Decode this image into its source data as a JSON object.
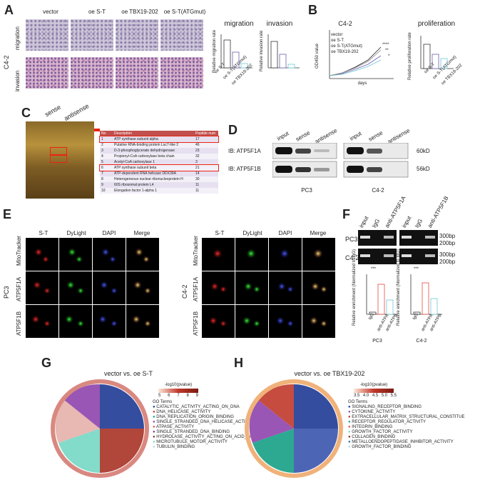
{
  "panels": {
    "A": "A",
    "B": "B",
    "C": "C",
    "D": "D",
    "E": "E",
    "F": "F",
    "G": "G",
    "H": "H"
  },
  "panelA": {
    "cell_line": "C4-2",
    "columns": [
      "vector",
      "oe S-T",
      "oe TBX19-202",
      "oe S-T(ATGmut)"
    ],
    "rows": [
      "migration",
      "invasion"
    ],
    "chart_titles": [
      "migration",
      "invasion"
    ],
    "ylabels": [
      "Relative migration rate",
      "Relative invasion rate"
    ],
    "xcats": [
      "oe S-T",
      "oe S-T(ATGmut)",
      "oe TBX19-202"
    ]
  },
  "panelB": {
    "title": "C4-2",
    "title2": "proliferation",
    "ylabel": "OD450 value",
    "xlabel": "days",
    "legend": [
      "vector",
      "oe S-T",
      "oe S-T(ATGmut)",
      "oe TBX19-202"
    ],
    "sig": [
      "****",
      "**",
      "*"
    ],
    "ylabel2": "Relative proliferation rate",
    "xcats2": [
      "oe S-T",
      "oe S-T(ATGmut)",
      "oe TBX19-202"
    ]
  },
  "panelC": {
    "lanes": [
      "sense",
      "antisense"
    ],
    "table_header": [
      "No",
      "Description",
      "Peptide num"
    ],
    "table_rows": [
      [
        "1",
        "ATP synthase subunit alpha",
        "17"
      ],
      [
        "2",
        "Putative RNA-binding protein Luc7-like 2",
        "46"
      ],
      [
        "3",
        "D-3-phosphoglycerate dehydrogenase",
        "23"
      ],
      [
        "4",
        "Propionyl-CoA carboxylase beta chain",
        "32"
      ],
      [
        "5",
        "Acetyl-CoA carboxylase 1",
        "3"
      ],
      [
        "6",
        "ATP synthase subunit beta",
        "21"
      ],
      [
        "7",
        "ATP-dependent RNA helicase DDX39A",
        "14"
      ],
      [
        "8",
        "Heterogeneous nuclear ribonucleoprotein H",
        "30"
      ],
      [
        "9",
        "60S ribosomal protein L4",
        "11"
      ],
      [
        "10",
        "Elongation factor 1-alpha 1",
        "11"
      ]
    ]
  },
  "panelD": {
    "lanes": [
      "input",
      "sense",
      "antisense",
      "input",
      "sense",
      "antisense"
    ],
    "rows": [
      "IB: ATP5F1A",
      "IB: ATP5F1B"
    ],
    "sizes": [
      "60kD",
      "56kD"
    ],
    "cells": [
      "PC3",
      "C4-2"
    ]
  },
  "panelE": {
    "cols": [
      "S-T",
      "DyLight",
      "DAPI",
      "Merge"
    ],
    "rows": [
      "MitoTracker",
      "ATP5F1A",
      "ATP5F1B"
    ],
    "cells": [
      "PC3",
      "C4-2"
    ]
  },
  "panelF": {
    "lanes": [
      "input",
      "IgG",
      "anti-ATP5F1A",
      "input",
      "IgG",
      "anti-ATP5F1B"
    ],
    "cells": [
      "PC3",
      "C4-2"
    ],
    "sizes": [
      "300bp",
      "200bp"
    ],
    "ylabel": "Relative enrichment (Normalized to IgG)",
    "xcats": [
      "IgG",
      "anti-ATPA",
      "anti-ATPB"
    ],
    "sig": "***"
  },
  "panelG": {
    "title": "vector vs. oe S-T",
    "scale_label": "-log10(pvalue)",
    "scale_ticks": [
      "5",
      "6",
      "7",
      "8",
      "9"
    ],
    "legend_title": "GO Terms",
    "terms": [
      "CATALYTIC_ACTIVITY_ACTING_ON_DNA",
      "DNA_HELICASE_ACTIVITY",
      "DNA_REPLICATION_ORIGIN_BINDING",
      "SINGLE_STRANDED_DNA_HELICASE_ACTIVITY",
      "ATPASE_ACTIVITY",
      "SINGLE_STRANDED_DNA_BINDING",
      "HYDROLASE_ACTIVITY_ACTING_ON_ACID_ANHYDRID",
      "MICROTUBULE_MOTOR_ACTIVITY",
      "TUBULIN_BINDING"
    ],
    "term_colors": [
      "#1f3a93",
      "#c0392b",
      "#16a085",
      "#8e44ad",
      "#e74c3c",
      "#6c3483",
      "#922b21",
      "#76d7c4",
      "#aed6f1"
    ]
  },
  "panelH": {
    "title": "vector vs. oe TBX19-202",
    "scale_label": "-log10(pvalue)",
    "scale_ticks": [
      "3.5",
      "4.0",
      "4.5",
      "5.0",
      "5.5"
    ],
    "legend_title": "GO Terms",
    "terms": [
      "SIGNALING_RECEPTOR_BINDING",
      "CYTOKINE_ACTIVITY",
      "EXTRACELLULAR_MATRIX_STRUCTURAL_CONSTITUE",
      "RECEPTOR_REGULATOR_ACTIVITY",
      "INTEGRIN_BINDING",
      "GROWTH_FACTOR_ACTIVITY",
      "COLLAGEN_BINDING",
      "METALLOENDOPEPTIDASE_INHIBITOR_ACTIVITY",
      "GROWTH_FACTOR_BINDING"
    ],
    "term_colors": [
      "#1f3a93",
      "#8e44ad",
      "#c0392b",
      "#16a085",
      "#e74c3c",
      "#76d7c4",
      "#922b21",
      "#2471a3",
      "#aed6f1"
    ]
  }
}
